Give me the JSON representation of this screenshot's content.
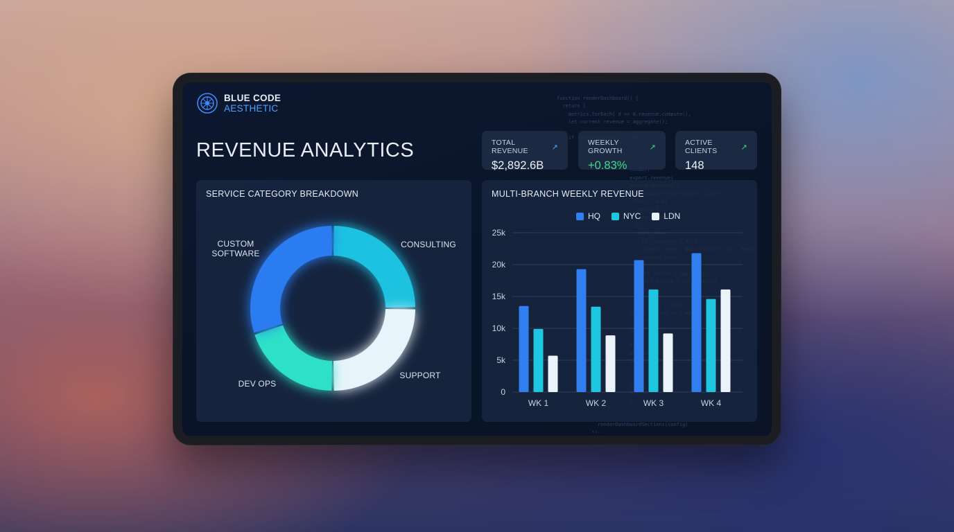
{
  "brand": {
    "line1": "BLUE CODE",
    "line2": "AESTHETIC"
  },
  "title": "REVENUE ANALYTICS",
  "kpis": [
    {
      "label": "TOTAL REVENUE",
      "value": "$2,892.6B",
      "arrow_color": "#4aa3ff",
      "value_color": "#eef2f8"
    },
    {
      "label": "WEEKLY GROWTH",
      "value": "+0.83%",
      "arrow_color": "#39d98a",
      "value_color": "#3ddc84"
    },
    {
      "label": "ACTIVE CLIENTS",
      "value": "148",
      "arrow_color": "#39d98a",
      "value_color": "#eef2f8"
    }
  ],
  "donut": {
    "panel_title": "SERVICE CATEGORY BREAKDOWN",
    "labels": {
      "custom_line1": "CUSTOM",
      "custom_line2": "SOFTWARE",
      "consulting": "CONSULTING",
      "support": "SUPPORT",
      "devops": "DEV OPS"
    }
  },
  "bars": {
    "panel_title": "MULTI-BRANCH WEEKLY REVENUE"
  },
  "chart_data": [
    {
      "type": "pie",
      "title": "SERVICE CATEGORY BREAKDOWN",
      "donut": true,
      "categories": [
        "CONSULTING",
        "SUPPORT",
        "DEV OPS",
        "CUSTOM SOFTWARE"
      ],
      "values": [
        25,
        25,
        20,
        30
      ],
      "colors": [
        "#1fc2e0",
        "#e8f4fb",
        "#2fe0c8",
        "#2b7cf0"
      ]
    },
    {
      "type": "bar",
      "title": "MULTI-BRANCH WEEKLY REVENUE",
      "categories": [
        "WK 1",
        "WK 2",
        "WK 3",
        "WK 4"
      ],
      "series": [
        {
          "name": "HQ",
          "color": "#2f7ff0",
          "values": [
            13500,
            19300,
            20700,
            21800
          ]
        },
        {
          "name": "NYC",
          "color": "#1ec6e0",
          "values": [
            9900,
            13400,
            16100,
            14600
          ]
        },
        {
          "name": "LDN",
          "color": "#eaf3fa",
          "values": [
            5700,
            8900,
            9200,
            16100
          ]
        }
      ],
      "y_ticks": [
        "0",
        "5k",
        "10k",
        "15k",
        "20k",
        "25k"
      ],
      "ylim": [
        0,
        25000
      ],
      "grid": true,
      "legend": "top"
    }
  ]
}
